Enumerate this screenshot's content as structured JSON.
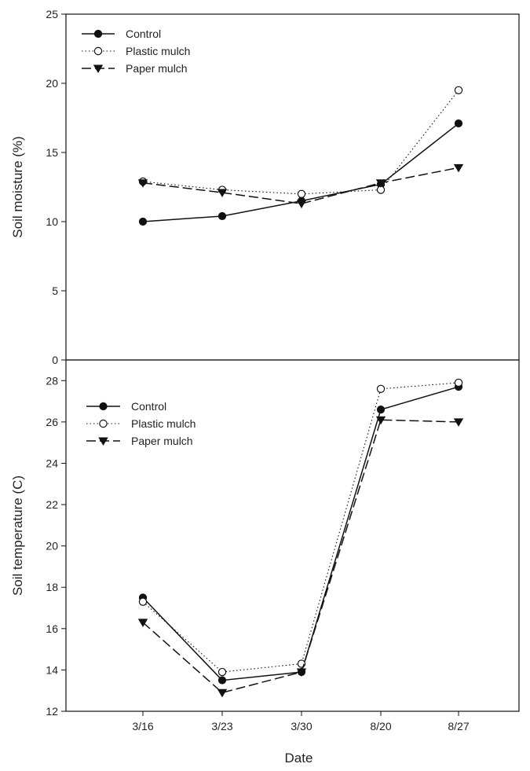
{
  "chart_data": [
    {
      "type": "line",
      "title": "",
      "xlabel": "",
      "ylabel": "Soil moisture (%)",
      "categories": [
        "3/16",
        "3/23",
        "3/30",
        "8/20",
        "8/27"
      ],
      "ylim": [
        0,
        25
      ],
      "yticks": [
        0,
        5,
        10,
        15,
        20,
        25
      ],
      "grid": false,
      "legend_position": "top-left",
      "series": [
        {
          "name": "Control",
          "marker": "filled-circle",
          "line": "solid",
          "values": [
            10.0,
            10.4,
            11.5,
            12.7,
            17.1
          ]
        },
        {
          "name": "Plastic mulch",
          "marker": "open-circle",
          "line": "dotted",
          "values": [
            12.9,
            12.3,
            12.0,
            12.3,
            19.5
          ]
        },
        {
          "name": "Paper mulch",
          "marker": "filled-triangle-down",
          "line": "dashed",
          "values": [
            12.8,
            12.1,
            11.3,
            12.8,
            13.9
          ]
        }
      ]
    },
    {
      "type": "line",
      "title": "",
      "xlabel": "Date",
      "ylabel": "Soil temperature (C)",
      "categories": [
        "3/16",
        "3/23",
        "3/30",
        "8/20",
        "8/27"
      ],
      "ylim": [
        12,
        29
      ],
      "yticks": [
        12,
        14,
        16,
        18,
        20,
        22,
        24,
        26,
        28
      ],
      "grid": false,
      "legend_position": "top-left",
      "series": [
        {
          "name": "Control",
          "marker": "filled-circle",
          "line": "solid",
          "values": [
            17.5,
            13.5,
            13.9,
            26.6,
            27.7
          ]
        },
        {
          "name": "Plastic mulch",
          "marker": "open-circle",
          "line": "dotted",
          "values": [
            17.3,
            13.9,
            14.3,
            27.6,
            27.9
          ]
        },
        {
          "name": "Paper mulch",
          "marker": "filled-triangle-down",
          "line": "dashed",
          "values": [
            16.3,
            12.9,
            13.9,
            26.1,
            26.0
          ]
        }
      ]
    }
  ]
}
